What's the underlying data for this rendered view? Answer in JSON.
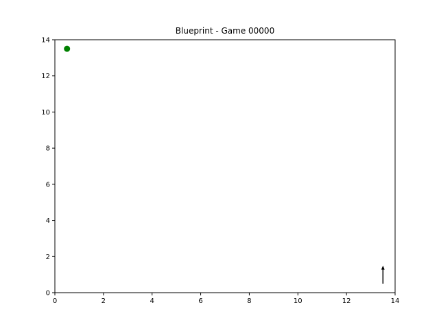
{
  "title": "Blueprint - Game 00000",
  "chart_data": {
    "type": "scatter",
    "title": "Blueprint - Game 00000",
    "xlim": [
      0,
      14
    ],
    "ylim": [
      0,
      14
    ],
    "x_ticks": [
      0,
      2,
      4,
      6,
      8,
      10,
      12,
      14
    ],
    "y_ticks": [
      0,
      2,
      4,
      6,
      8,
      10,
      12,
      14
    ],
    "grid": false,
    "points": [
      {
        "x": 0.5,
        "y": 13.5,
        "color": "#008000",
        "shape": "circle"
      }
    ],
    "arrows": [
      {
        "x": 13.5,
        "y": 0.5,
        "dx": 0,
        "dy": 1.0,
        "color": "#000000"
      }
    ]
  }
}
